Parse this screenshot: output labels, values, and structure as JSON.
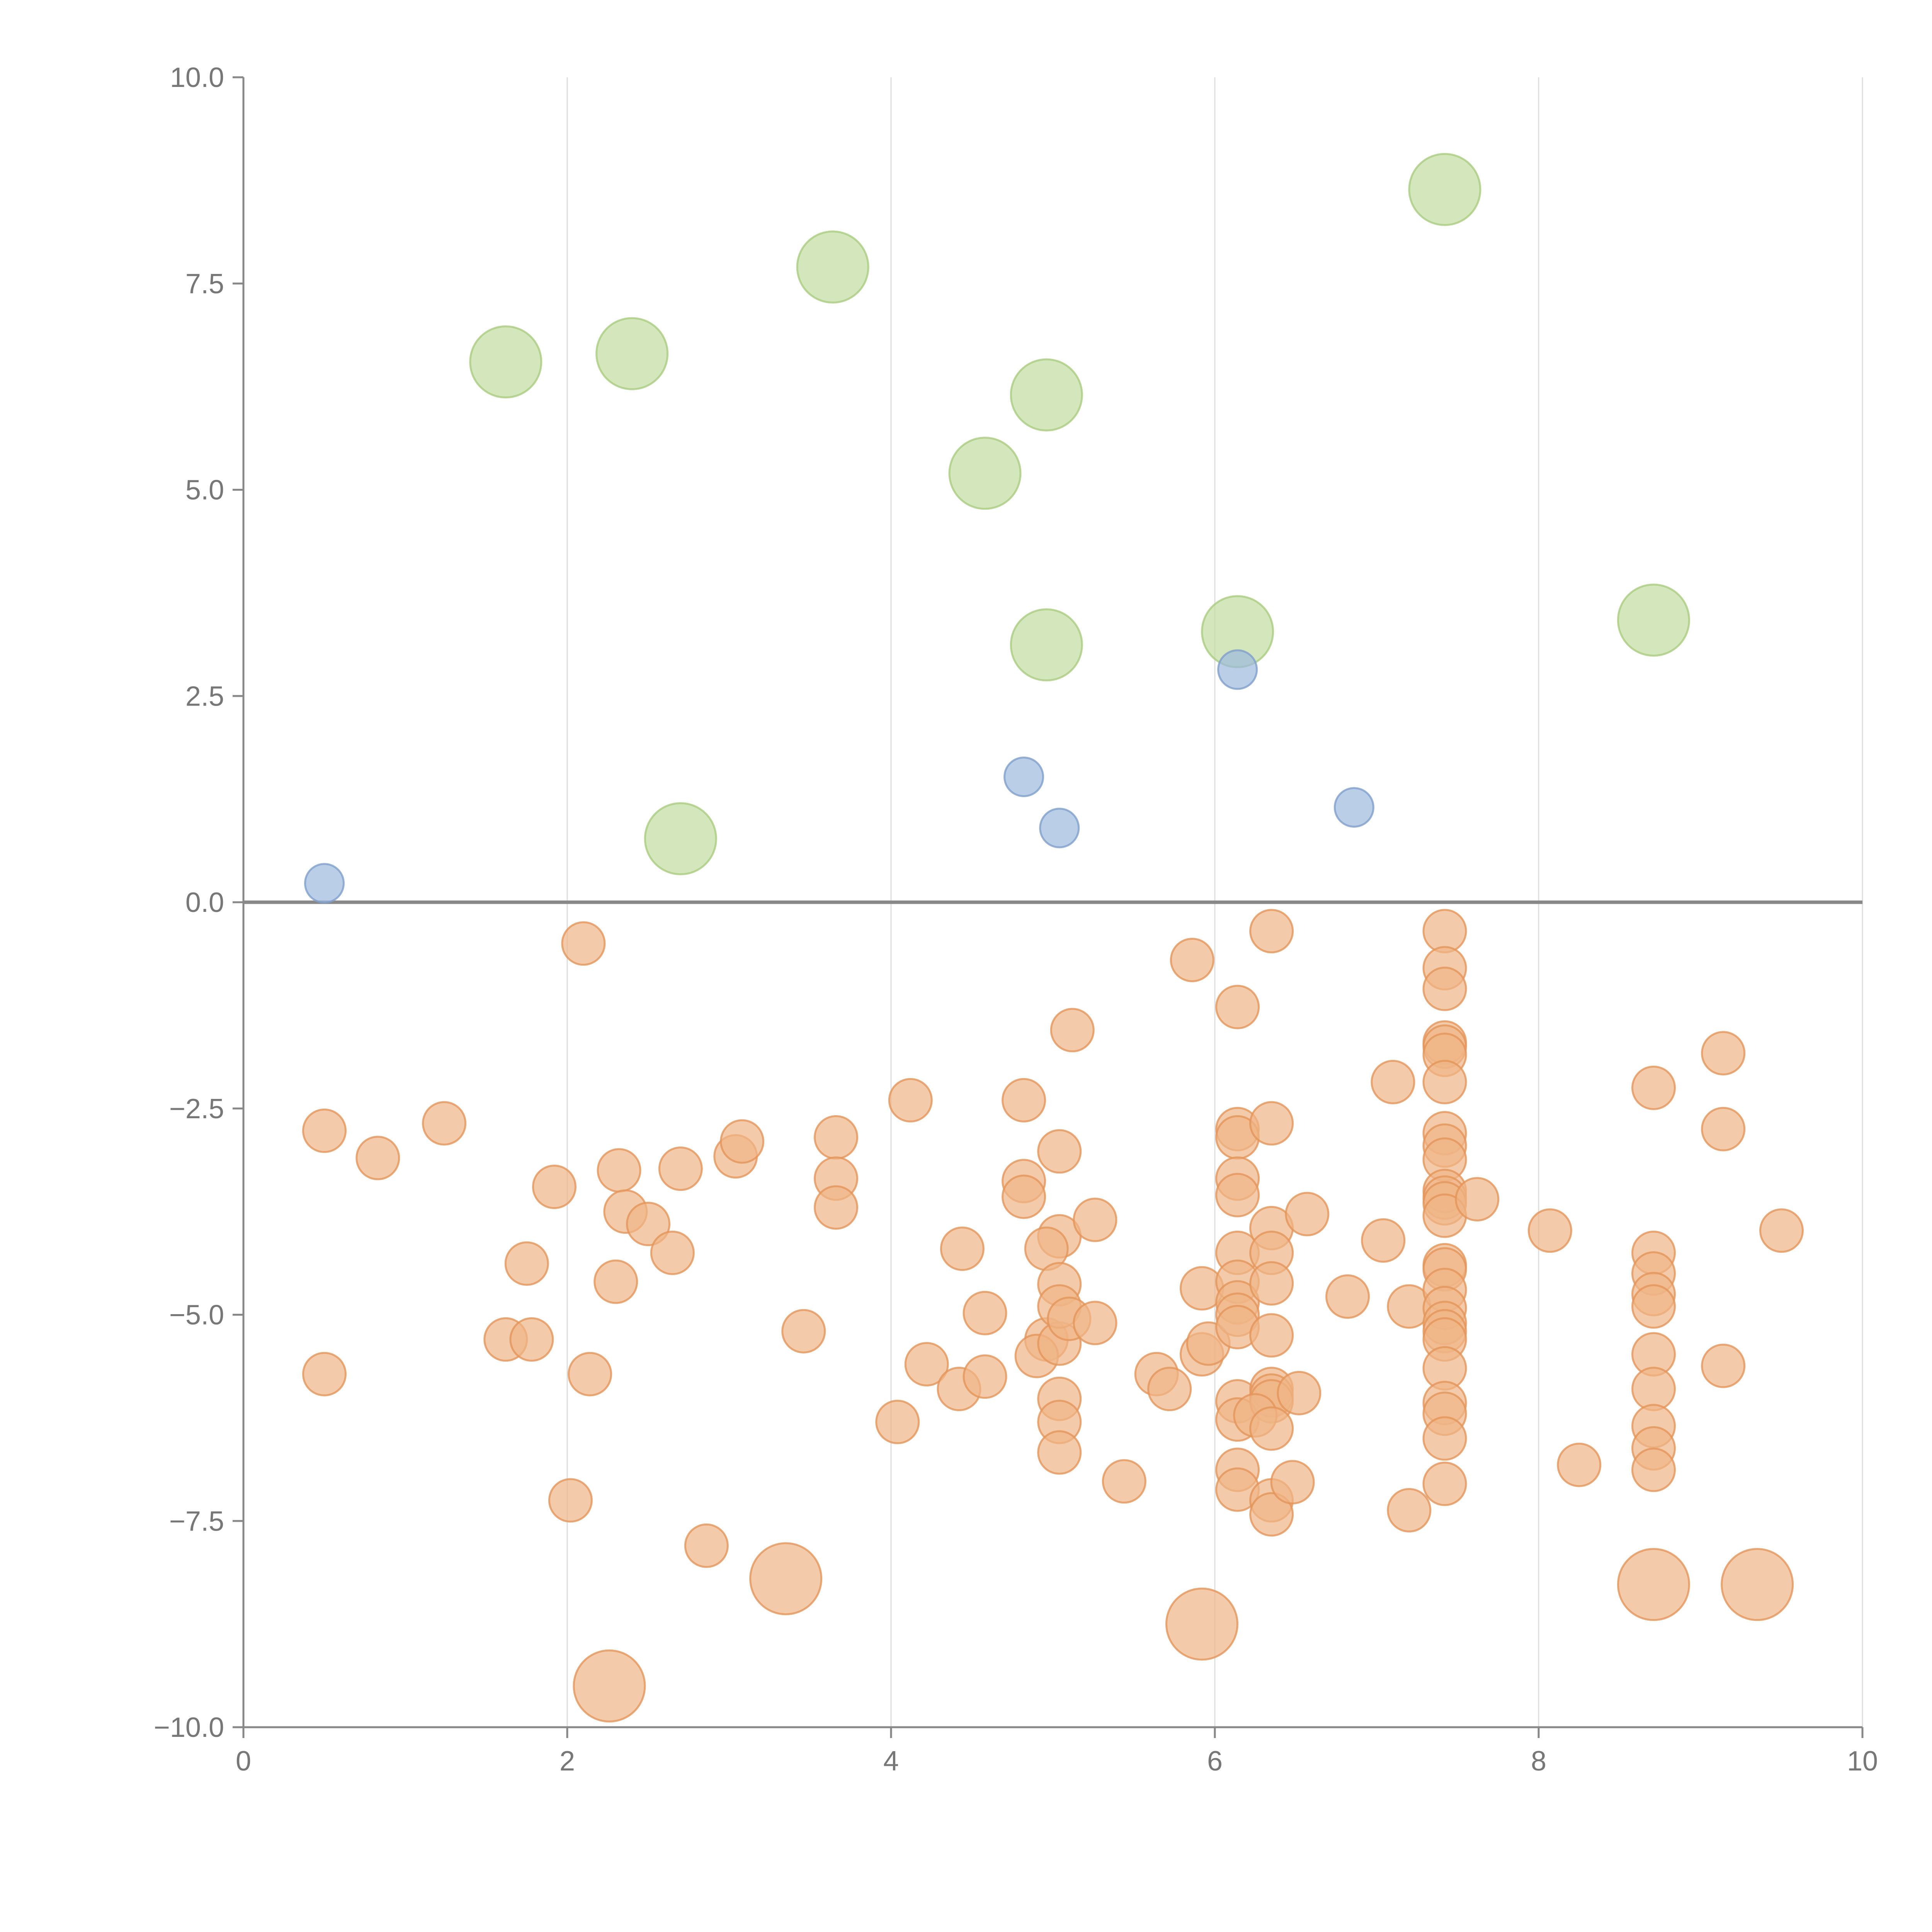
{
  "chart_data": {
    "type": "scatter",
    "title": "",
    "xlabel": "",
    "ylabel": "",
    "xlim": [
      0,
      10
    ],
    "ylim": [
      -10,
      10
    ],
    "grid": "vertical",
    "x_ticks": [
      "0",
      "2",
      "4",
      "6",
      "8",
      "10"
    ],
    "y_ticks": [
      "10.0",
      "7.5",
      "5.0",
      "2.5",
      "0.0",
      "−2.5",
      "−5.0",
      "−7.5",
      "−10.0"
    ],
    "colors": {
      "green": "#c2dc9f",
      "blue": "#9db9de",
      "orange": "#f0b586",
      "text": "#777777",
      "axis": "#888888",
      "grid": "#dddddd"
    },
    "series": [
      {
        "name": "green",
        "color": "#c2dc9f",
        "stroke": "#a9cc80",
        "size": "large",
        "points": [
          [
            1.62,
            6.55
          ],
          [
            2.4,
            6.65
          ],
          [
            3.64,
            7.7
          ],
          [
            4.96,
            6.15
          ],
          [
            4.58,
            5.2
          ],
          [
            4.96,
            3.12
          ],
          [
            6.14,
            3.28
          ],
          [
            7.42,
            8.64
          ],
          [
            8.71,
            3.42
          ],
          [
            2.7,
            0.77
          ]
        ]
      },
      {
        "name": "blue",
        "color": "#9db9de",
        "stroke": "#7f9fcb",
        "size": "small",
        "points": [
          [
            0.5,
            0.23
          ],
          [
            4.82,
            1.52
          ],
          [
            5.04,
            0.9
          ],
          [
            6.14,
            2.82
          ],
          [
            6.86,
            1.15
          ]
        ]
      },
      {
        "name": "orange",
        "color": "#f0b586",
        "stroke": "#e3955a",
        "size": "medium",
        "points": [
          [
            2.1,
            -0.5
          ],
          [
            5.86,
            -0.7
          ],
          [
            6.35,
            -0.35
          ],
          [
            6.14,
            -1.27
          ],
          [
            5.12,
            -1.55
          ],
          [
            7.42,
            -0.35
          ],
          [
            7.42,
            -0.8
          ],
          [
            7.42,
            -1.05
          ],
          [
            7.42,
            -1.7
          ],
          [
            7.42,
            -1.75
          ],
          [
            7.42,
            -1.85
          ],
          [
            7.42,
            -2.18
          ],
          [
            7.1,
            -2.18
          ],
          [
            9.14,
            -1.83
          ],
          [
            8.71,
            -2.25
          ],
          [
            9.14,
            -2.75
          ],
          [
            4.12,
            -2.4
          ],
          [
            4.82,
            -2.4
          ],
          [
            0.5,
            -2.77
          ],
          [
            0.83,
            -3.1
          ],
          [
            1.24,
            -2.68
          ],
          [
            1.92,
            -3.45
          ],
          [
            2.32,
            -3.25
          ],
          [
            2.7,
            -3.23
          ],
          [
            3.04,
            -3.08
          ],
          [
            3.08,
            -2.9
          ],
          [
            3.66,
            -2.85
          ],
          [
            3.66,
            -3.35
          ],
          [
            3.66,
            -3.7
          ],
          [
            4.82,
            -3.38
          ],
          [
            4.82,
            -3.57
          ],
          [
            5.04,
            -3.02
          ],
          [
            5.04,
            -4.05
          ],
          [
            5.26,
            -3.85
          ],
          [
            4.96,
            -4.2
          ],
          [
            4.44,
            -4.2
          ],
          [
            2.36,
            -3.75
          ],
          [
            2.5,
            -3.9
          ],
          [
            2.65,
            -4.25
          ],
          [
            2.3,
            -4.6
          ],
          [
            1.75,
            -4.38
          ],
          [
            1.62,
            -5.3
          ],
          [
            1.78,
            -5.3
          ],
          [
            0.5,
            -5.72
          ],
          [
            2.14,
            -5.72
          ],
          [
            2.02,
            -7.25
          ],
          [
            2.86,
            -7.8
          ],
          [
            3.46,
            -5.2
          ],
          [
            4.04,
            -6.3
          ],
          [
            4.22,
            -5.6
          ],
          [
            4.42,
            -5.9
          ],
          [
            4.58,
            -5.75
          ],
          [
            4.58,
            -4.98
          ],
          [
            4.96,
            -5.3
          ],
          [
            4.9,
            -5.5
          ],
          [
            5.04,
            -5.35
          ],
          [
            5.04,
            -4.63
          ],
          [
            5.04,
            -4.9
          ],
          [
            5.1,
            -5.05
          ],
          [
            5.26,
            -5.1
          ],
          [
            5.04,
            -6.02
          ],
          [
            5.04,
            -6.3
          ],
          [
            5.04,
            -6.67
          ],
          [
            5.44,
            -7.02
          ],
          [
            5.64,
            -5.72
          ],
          [
            5.72,
            -5.9
          ],
          [
            5.92,
            -5.48
          ],
          [
            5.96,
            -5.35
          ],
          [
            5.92,
            -4.68
          ],
          [
            6.14,
            -2.75
          ],
          [
            6.14,
            -2.85
          ],
          [
            6.14,
            -3.35
          ],
          [
            6.14,
            -3.55
          ],
          [
            6.14,
            -4.25
          ],
          [
            6.14,
            -4.6
          ],
          [
            6.14,
            -4.85
          ],
          [
            6.14,
            -5.0
          ],
          [
            6.14,
            -5.15
          ],
          [
            6.14,
            -6.05
          ],
          [
            6.14,
            -6.27
          ],
          [
            6.14,
            -6.88
          ],
          [
            6.14,
            -7.12
          ],
          [
            6.35,
            -2.68
          ],
          [
            6.35,
            -3.95
          ],
          [
            6.35,
            -4.25
          ],
          [
            6.35,
            -4.62
          ],
          [
            6.35,
            -5.25
          ],
          [
            6.35,
            -5.9
          ],
          [
            6.35,
            -5.98
          ],
          [
            6.35,
            -6.05
          ],
          [
            6.25,
            -6.22
          ],
          [
            6.35,
            -6.38
          ],
          [
            6.35,
            -7.25
          ],
          [
            6.35,
            -7.42
          ],
          [
            6.48,
            -7.03
          ],
          [
            6.52,
            -5.95
          ],
          [
            6.57,
            -3.78
          ],
          [
            6.82,
            -4.78
          ],
          [
            7.04,
            -4.1
          ],
          [
            7.2,
            -4.9
          ],
          [
            7.2,
            -7.37
          ],
          [
            7.42,
            -2.8
          ],
          [
            7.42,
            -2.95
          ],
          [
            7.42,
            -3.12
          ],
          [
            7.42,
            -3.5
          ],
          [
            7.42,
            -3.58
          ],
          [
            7.42,
            -3.65
          ],
          [
            7.42,
            -3.8
          ],
          [
            7.62,
            -3.6
          ],
          [
            7.42,
            -4.4
          ],
          [
            7.42,
            -4.45
          ],
          [
            7.42,
            -4.7
          ],
          [
            7.42,
            -4.92
          ],
          [
            7.42,
            -5.1
          ],
          [
            7.42,
            -5.2
          ],
          [
            7.42,
            -5.3
          ],
          [
            7.42,
            -5.65
          ],
          [
            7.42,
            -6.07
          ],
          [
            7.42,
            -6.2
          ],
          [
            7.42,
            -6.5
          ],
          [
            7.42,
            -7.05
          ],
          [
            8.07,
            -3.98
          ],
          [
            8.25,
            -6.82
          ],
          [
            8.71,
            -4.25
          ],
          [
            8.71,
            -4.5
          ],
          [
            8.71,
            -4.75
          ],
          [
            8.71,
            -4.9
          ],
          [
            8.71,
            -5.48
          ],
          [
            8.71,
            -5.9
          ],
          [
            8.71,
            -6.35
          ],
          [
            8.71,
            -6.62
          ],
          [
            8.71,
            -6.88
          ],
          [
            9.14,
            -5.62
          ],
          [
            9.5,
            -3.98
          ]
        ]
      },
      {
        "name": "orange-large",
        "color": "#f0b586",
        "stroke": "#e3955a",
        "size": "large",
        "points": [
          [
            2.26,
            -9.5
          ],
          [
            3.35,
            -8.2
          ],
          [
            5.92,
            -8.75
          ],
          [
            8.71,
            -8.27
          ],
          [
            9.35,
            -8.27
          ]
        ]
      }
    ]
  }
}
